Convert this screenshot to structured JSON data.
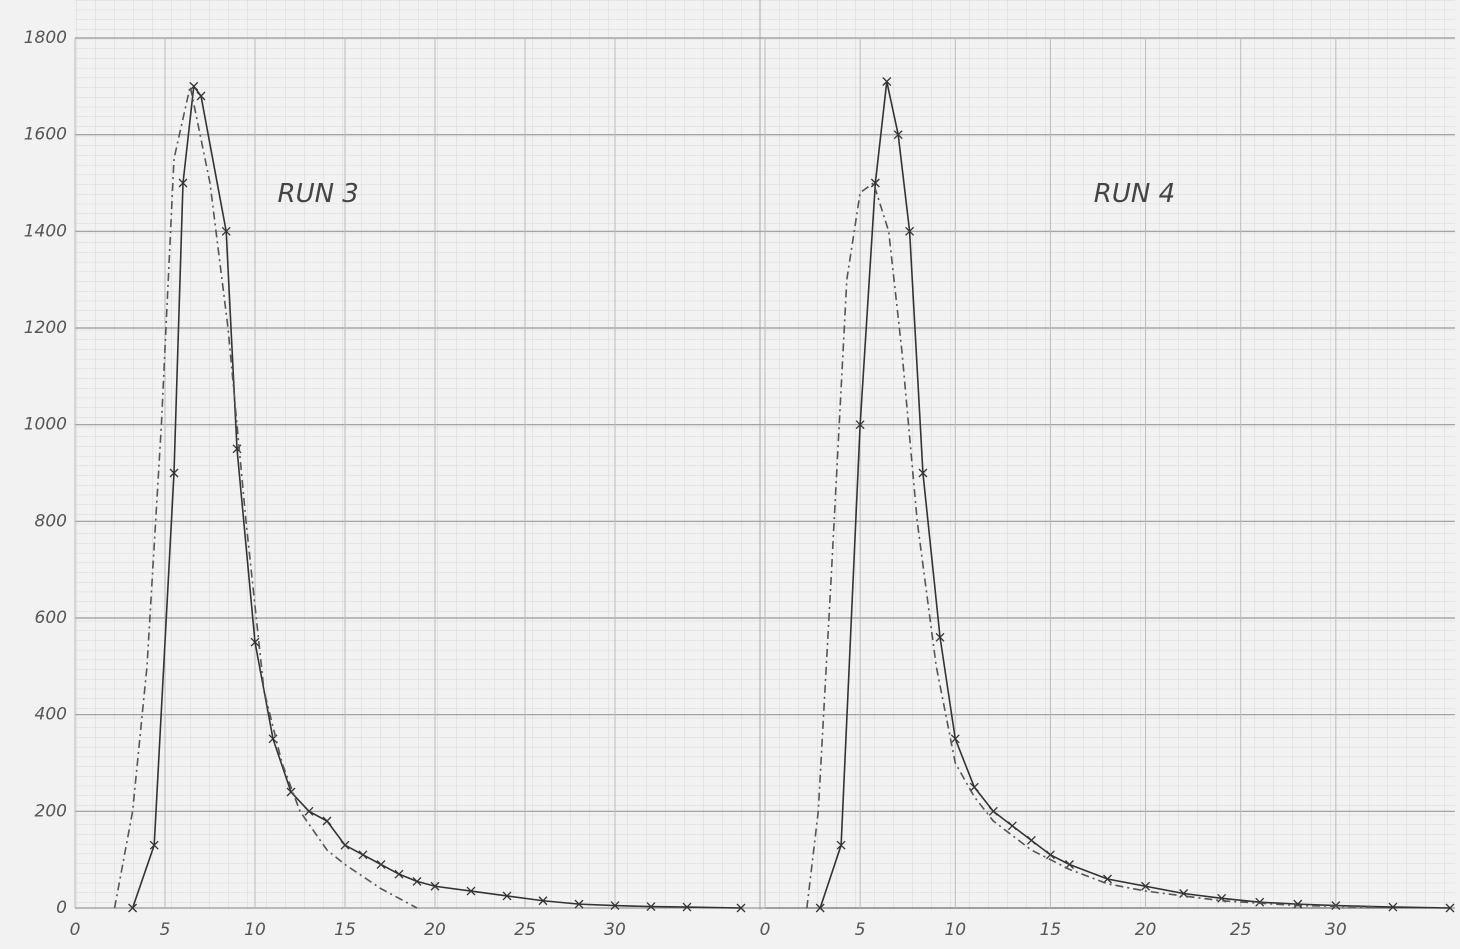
{
  "chart_data": [
    {
      "type": "line",
      "annotations": [
        "RUN 3"
      ],
      "ylim": [
        0,
        1800
      ],
      "yticks": [
        0,
        200,
        400,
        600,
        800,
        1000,
        1200,
        1400,
        1600,
        1800
      ],
      "xlim": [
        0,
        37.5
      ],
      "xticks": [
        0,
        5,
        10,
        15,
        20,
        25,
        30
      ],
      "grid": true,
      "series": [
        {
          "color": "#333333",
          "marker": "x",
          "dash": "solid",
          "x": [
            3.2,
            4.4,
            5.5,
            6.0,
            6.6,
            7.0,
            8.4,
            9.0,
            10,
            11,
            12,
            13,
            14,
            15,
            16,
            17,
            18,
            19,
            20,
            22,
            24,
            26,
            28,
            30,
            32,
            34,
            37
          ],
          "values": [
            0,
            130,
            900,
            1500,
            1700,
            1680,
            1400,
            950,
            550,
            350,
            240,
            200,
            180,
            130,
            110,
            90,
            70,
            55,
            45,
            35,
            25,
            15,
            8,
            5,
            3,
            2,
            0
          ]
        },
        {
          "color": "#555555",
          "marker": "none",
          "dash": "dashdot",
          "x": [
            2.2,
            3.2,
            4,
            4.8,
            5.5,
            6.4,
            7.5,
            8.5,
            9.5,
            10.5,
            11.5,
            12.5,
            14,
            15,
            17,
            18,
            19
          ],
          "values": [
            0,
            200,
            500,
            1000,
            1550,
            1700,
            1500,
            1200,
            800,
            450,
            300,
            200,
            120,
            90,
            40,
            20,
            0
          ]
        }
      ]
    },
    {
      "type": "line",
      "annotations": [
        "RUN 4"
      ],
      "ylim": [
        0,
        1800
      ],
      "xlim": [
        0,
        36
      ],
      "xticks": [
        0,
        5,
        10,
        15,
        20,
        25,
        30
      ],
      "grid": true,
      "series": [
        {
          "color": "#333333",
          "marker": "x",
          "dash": "solid",
          "x": [
            2.9,
            4,
            5,
            5.8,
            6.4,
            7,
            7.6,
            8.3,
            9.2,
            10,
            11,
            12,
            13,
            14,
            15,
            16,
            18,
            20,
            22,
            24,
            26,
            28,
            30,
            33,
            36
          ],
          "values": [
            0,
            130,
            1000,
            1500,
            1710,
            1600,
            1400,
            900,
            560,
            350,
            250,
            200,
            170,
            140,
            110,
            90,
            60,
            45,
            30,
            20,
            12,
            8,
            5,
            2,
            0
          ]
        },
        {
          "color": "#555555",
          "marker": "none",
          "dash": "dashdot",
          "x": [
            2.2,
            2.8,
            3.5,
            4.3,
            5,
            5.7,
            6.5,
            7.2,
            8,
            9,
            10,
            11,
            12,
            14,
            16,
            18,
            20,
            24,
            28,
            32
          ],
          "values": [
            0,
            200,
            700,
            1300,
            1480,
            1500,
            1400,
            1150,
            800,
            500,
            300,
            230,
            180,
            120,
            80,
            50,
            35,
            15,
            5,
            2
          ]
        }
      ]
    }
  ]
}
